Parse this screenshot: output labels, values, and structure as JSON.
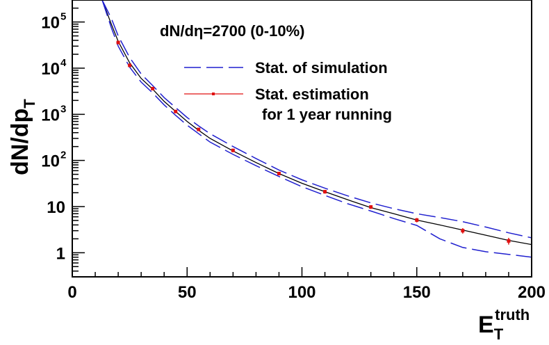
{
  "chart_data": {
    "type": "line",
    "annotation": "dN/dη=2700 (0-10%)",
    "xlabel": {
      "main": "E",
      "sub": "T",
      "sup": "truth"
    },
    "ylabel": {
      "main": "dN/dp",
      "sub": "T"
    },
    "xlim": [
      0,
      200
    ],
    "ylim": [
      0.3,
      300000
    ],
    "yscale": "log",
    "x_ticks": [
      0,
      50,
      100,
      150,
      200
    ],
    "x_tick_labels": [
      "0",
      "50",
      "100",
      "150",
      "200"
    ],
    "y_ticks": [
      1,
      10,
      100,
      1000,
      10000,
      100000
    ],
    "y_tick_labels": [
      {
        "main": "1",
        "exp": ""
      },
      {
        "main": "10",
        "exp": ""
      },
      {
        "main": "10",
        "exp": "2"
      },
      {
        "main": "10",
        "exp": "3"
      },
      {
        "main": "10",
        "exp": "4"
      },
      {
        "main": "10",
        "exp": "5"
      }
    ],
    "legend": [
      {
        "label": "Stat. of simulation",
        "style": "dashed",
        "color": "#1f1fcf"
      },
      {
        "label": "Stat. estimation",
        "label2": "for 1 year running",
        "style": "solid-marker",
        "color": "#e01010"
      }
    ],
    "series": [
      {
        "name": "central",
        "style": "solid",
        "color": "#000000",
        "x": [
          13,
          17,
          20,
          25,
          30,
          35,
          40,
          45,
          50,
          55,
          60,
          70,
          80,
          90,
          100,
          110,
          120,
          130,
          140,
          150,
          160,
          170,
          180,
          190,
          200
        ],
        "y": [
          300000,
          90000,
          38000,
          13000,
          6000,
          3500,
          1900,
          1150,
          700,
          450,
          300,
          160,
          90,
          52,
          32,
          21,
          14,
          9.5,
          7,
          5.1,
          4,
          3.1,
          2.4,
          1.85,
          1.5
        ]
      },
      {
        "name": "upper",
        "style": "dashed",
        "color": "#1f1fcf",
        "x": [
          13,
          17,
          20,
          25,
          30,
          35,
          40,
          45,
          50,
          55,
          60,
          70,
          80,
          90,
          100,
          110,
          120,
          130,
          140,
          150,
          160,
          170,
          180,
          190,
          200
        ],
        "y": [
          300000,
          120000,
          50000,
          17000,
          7500,
          4200,
          2300,
          1400,
          850,
          560,
          380,
          200,
          110,
          62,
          38,
          25,
          17,
          12,
          9,
          7,
          5.8,
          4.7,
          3.6,
          2.7,
          2.1
        ]
      },
      {
        "name": "lower",
        "style": "dashed",
        "color": "#1f1fcf",
        "x": [
          13,
          17,
          20,
          25,
          30,
          35,
          40,
          45,
          50,
          55,
          60,
          70,
          80,
          90,
          100,
          110,
          120,
          130,
          140,
          150,
          160,
          170,
          180,
          190,
          200
        ],
        "y": [
          300000,
          75000,
          30000,
          10500,
          5000,
          2900,
          1600,
          950,
          580,
          380,
          250,
          135,
          77,
          45,
          27,
          17.5,
          11.5,
          8,
          5.5,
          3.9,
          2,
          1.3,
          1.05,
          0.92,
          0.8
        ]
      },
      {
        "name": "estimation points",
        "style": "points",
        "color": "#e01010",
        "x": [
          20,
          25,
          35,
          45,
          55,
          70,
          90,
          110,
          130,
          150,
          170,
          190
        ],
        "y": [
          36000,
          11500,
          3600,
          1150,
          470,
          165,
          52,
          21,
          9.8,
          5.1,
          3.0,
          1.8
        ],
        "yerr": [
          3000,
          900,
          250,
          90,
          35,
          14,
          4.5,
          1.9,
          0.9,
          0.55,
          0.4,
          0.3
        ]
      }
    ]
  }
}
